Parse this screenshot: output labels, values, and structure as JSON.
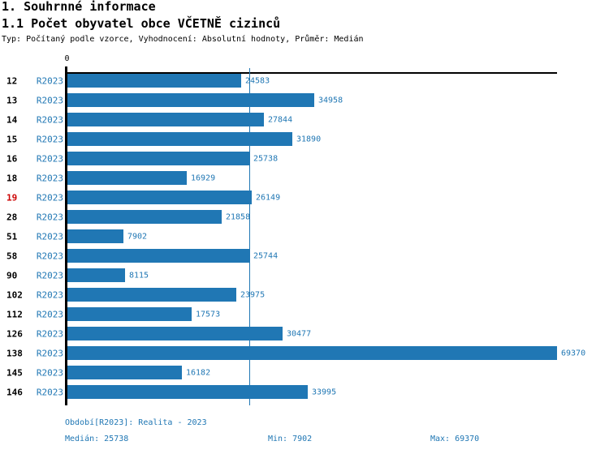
{
  "header": {
    "title": "1. Souhrnné informace",
    "subtitle": "1.1 Počet obyvatel obce VČETNĚ cizinců",
    "meta": "Typ: Počítaný podle vzorce, Vyhodnocení: Absolutní hodnoty, Průměr: Medián"
  },
  "chart_data": {
    "type": "bar",
    "orientation": "horizontal",
    "title": "1.1 Počet obyvatel obce VČETNĚ cizinců",
    "axis_zero_label": "0",
    "series_label": "R2023",
    "categories": [
      "12",
      "13",
      "14",
      "15",
      "16",
      "18",
      "19",
      "28",
      "51",
      "58",
      "90",
      "102",
      "112",
      "126",
      "138",
      "145",
      "146"
    ],
    "values": [
      24583,
      34958,
      27844,
      31890,
      25738,
      16929,
      26149,
      21858,
      7902,
      25744,
      8115,
      23975,
      17573,
      30477,
      69370,
      16182,
      33995
    ],
    "highlighted_category": "19",
    "median_value": 25738,
    "min_value": 7902,
    "max_value": 69370,
    "xlim": [
      0,
      69370
    ],
    "grid": false,
    "legend_position": "none",
    "colors": {
      "bar": "#2077b4",
      "value_text": "#2077b4",
      "series_text": "#2077b4",
      "category_text": "#000000",
      "highlight_text": "#cc0000",
      "axis": "#000000",
      "median_line": "#2077b4"
    }
  },
  "footer": {
    "period": "Období[R2023]: Realita - 2023",
    "median": "Medián: 25738",
    "min": "Min: 7902",
    "max": "Max: 69370"
  }
}
